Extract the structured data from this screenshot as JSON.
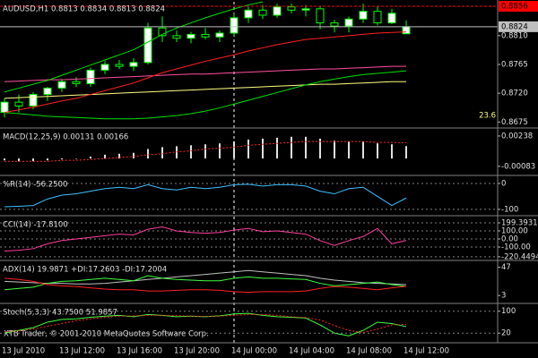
{
  "chart_data": [
    {
      "type": "candlestick",
      "title": "AUDUSD,H1  0.8813 0.8834 0.8813 0.8824",
      "categories": [
        "13 Jul 2010",
        null,
        null,
        null,
        "13 Jul 12:00",
        null,
        null,
        null,
        "13 Jul 16:00",
        null,
        null,
        null,
        "13 Jul 20:00",
        null,
        null,
        null,
        "14 Jul 00:00",
        null,
        null,
        null,
        "14 Jul 04:00",
        null,
        null,
        null,
        "14 Jul 08:00",
        null,
        null,
        null,
        "14 Jul 12:00"
      ],
      "open": [
        0.869,
        0.8706,
        0.87,
        0.8718,
        0.8728,
        0.8738,
        0.8735,
        0.8756,
        0.8765,
        0.8762,
        0.8768,
        0.8822,
        0.881,
        0.8806,
        0.8812,
        0.8808,
        0.8814,
        0.8838,
        0.885,
        0.8842,
        0.8855,
        0.885,
        0.8852,
        0.883,
        0.8825,
        0.8836,
        0.8848,
        0.883,
        0.8813
      ],
      "high": [
        0.8712,
        0.8718,
        0.8722,
        0.873,
        0.8742,
        0.8745,
        0.876,
        0.877,
        0.8772,
        0.8775,
        0.883,
        0.884,
        0.8818,
        0.8816,
        0.8822,
        0.8818,
        0.8845,
        0.8855,
        0.8858,
        0.886,
        0.886,
        0.8858,
        0.8856,
        0.8835,
        0.884,
        0.886,
        0.8856,
        0.8852,
        0.8834
      ],
      "low": [
        0.8682,
        0.869,
        0.8695,
        0.8708,
        0.8722,
        0.873,
        0.873,
        0.875,
        0.8758,
        0.8755,
        0.8765,
        0.88,
        0.88,
        0.8798,
        0.8804,
        0.88,
        0.881,
        0.883,
        0.8836,
        0.8838,
        0.8845,
        0.884,
        0.882,
        0.8815,
        0.8815,
        0.883,
        0.8826,
        0.8828,
        0.8813
      ],
      "close": [
        0.8706,
        0.87,
        0.8718,
        0.8728,
        0.8738,
        0.8735,
        0.8756,
        0.8765,
        0.8762,
        0.8768,
        0.8822,
        0.881,
        0.8806,
        0.8812,
        0.8808,
        0.8814,
        0.8838,
        0.885,
        0.8842,
        0.8855,
        0.885,
        0.8852,
        0.883,
        0.8825,
        0.8836,
        0.8848,
        0.883,
        0.8845,
        0.8824
      ],
      "up_color": "#ffffff",
      "down_color": "#000000",
      "candle_stroke": "#00ff00",
      "lines": [
        {
          "color": "#ffff80",
          "values": [
            0.8712,
            0.8713,
            0.8714,
            0.8715,
            0.8716,
            0.8717,
            0.8718,
            0.8719,
            0.872,
            0.8721,
            0.8722,
            0.8723,
            0.8724,
            0.8725,
            0.8726,
            0.8727,
            0.8728,
            0.8729,
            0.873,
            0.8731,
            0.8732,
            0.8733,
            0.8734,
            0.8734,
            0.8735,
            0.8736,
            0.8737,
            0.8738,
            0.8738
          ]
        },
        {
          "color": "#ff4fa0",
          "values": [
            0.8738,
            0.8739,
            0.874,
            0.8741,
            0.8741,
            0.8742,
            0.8743,
            0.8744,
            0.8745,
            0.8746,
            0.8747,
            0.8748,
            0.8749,
            0.875,
            0.875,
            0.8751,
            0.8752,
            0.8753,
            0.8754,
            0.8755,
            0.8756,
            0.8757,
            0.8758,
            0.8758,
            0.8759,
            0.876,
            0.8761,
            0.8762,
            0.8762
          ]
        },
        {
          "color": "#00e000",
          "values": [
            0.869,
            0.8688,
            0.8686,
            0.8684,
            0.8683,
            0.8682,
            0.8681,
            0.868,
            0.868,
            0.868,
            0.8681,
            0.8683,
            0.8685,
            0.8688,
            0.8692,
            0.8697,
            0.8703,
            0.8709,
            0.8715,
            0.8721,
            0.8727,
            0.8733,
            0.8738,
            0.8742,
            0.8746,
            0.8749,
            0.8751,
            0.8753,
            0.8755
          ]
        },
        {
          "color": "#00e000",
          "values": [
            0.8722,
            0.8728,
            0.8734,
            0.874,
            0.8748,
            0.8756,
            0.8764,
            0.8772,
            0.878,
            0.8788,
            0.88,
            0.8812,
            0.8822,
            0.883,
            0.8838,
            0.8845,
            0.8852,
            0.8858,
            0.8863,
            null,
            null,
            null,
            null,
            null,
            null,
            null,
            null,
            null,
            null
          ]
        },
        {
          "color": "#ff2020",
          "values": [
            0.869,
            0.8694,
            0.8698,
            0.8703,
            0.8708,
            0.8712,
            0.8718,
            0.8724,
            0.873,
            0.8736,
            0.8744,
            0.8752,
            0.8758,
            0.8764,
            0.877,
            0.8775,
            0.878,
            0.8786,
            0.8791,
            0.8796,
            0.88,
            0.8804,
            0.8806,
            0.8808,
            0.881,
            0.8812,
            0.8814,
            0.8815,
            0.8816
          ]
        }
      ],
      "markers": [
        {
          "value": 0.8856,
          "color": "#ff0000"
        },
        {
          "value": 0.8824,
          "color": "#c0c0c0"
        }
      ],
      "fib": {
        "label": "23.6",
        "value": 0.8677,
        "color": "#ffff80"
      },
      "ylim": [
        0.8667,
        0.8863
      ],
      "yticks": [
        {
          "value": 0.881,
          "label": "0.8810"
        },
        0.8765,
        {
          "value": 0.872,
          "label": "0.8720"
        },
        0.8675
      ],
      "grid": false
    },
    {
      "type": "macd",
      "title": "MACD(12,25,9) 0.00131 0.00166",
      "values": [
        -0.0002,
        -0.0003,
        -0.0003,
        -0.0002,
        -0.0001,
        0.0,
        0.0002,
        0.0004,
        0.0005,
        0.0006,
        0.001,
        0.0012,
        0.0013,
        0.0014,
        0.0015,
        0.0016,
        0.0018,
        0.002,
        0.0021,
        0.0022,
        0.0023,
        0.0023,
        0.0021,
        0.0019,
        0.0018,
        0.0018,
        0.0016,
        0.0015,
        0.00131
      ],
      "color": "#e0e0e0",
      "series": [
        {
          "color": "#ff2020",
          "dash": true,
          "values": [
            -0.0003,
            -0.0003,
            -0.0003,
            -0.0003,
            -0.0002,
            -0.0002,
            -0.0001,
            0,
            0.0001,
            0.0002,
            0.0004,
            0.0005,
            0.0007,
            0.0008,
            0.001,
            0.0011,
            0.0012,
            0.0014,
            0.0015,
            0.0016,
            0.0017,
            0.0018,
            0.0018,
            0.0018,
            0.0018,
            0.0018,
            0.0017,
            0.0017,
            0.00166
          ]
        }
      ],
      "ylim": [
        -0.0017,
        0.00304
      ],
      "yticks": [
        0.00238,
        -0.00083
      ],
      "grid": false
    },
    {
      "type": "line",
      "title": "%R(14) -56.2500",
      "series": [
        {
          "color": "#40c0ff",
          "values": [
            -90,
            -88,
            -85,
            -60,
            -45,
            -40,
            -30,
            -20,
            -15,
            -20,
            -5,
            -20,
            -25,
            -15,
            -20,
            -15,
            -5,
            -3,
            -10,
            -5,
            -5,
            -10,
            -30,
            -40,
            -20,
            -15,
            -50,
            -85,
            -56.25
          ]
        }
      ],
      "ylim": [
        -121,
        24
      ],
      "yticks": [
        0,
        -100
      ],
      "grid": true
    },
    {
      "type": "line",
      "title": "CCI(14) -17.8100",
      "series": [
        {
          "color": "#ff40a0",
          "values": [
            -150,
            -140,
            -120,
            -60,
            -20,
            0,
            20,
            40,
            60,
            50,
            120,
            150,
            100,
            80,
            70,
            80,
            110,
            130,
            90,
            100,
            80,
            60,
            -20,
            -80,
            -20,
            30,
            130,
            -60,
            -17.81
          ]
        }
      ],
      "ylim": [
        -255,
        266
      ],
      "yticks": [
        199.3931,
        {
          "value": 100,
          "label": "100.00"
        },
        {
          "value": 0,
          "label": "0.00"
        },
        {
          "value": -100,
          "label": "-100.00"
        },
        -220.4494
      ],
      "grid": true
    },
    {
      "type": "line",
      "title": "ADX(14) 19.9871 +DI:17.2603 -DI:17.2004",
      "series": [
        {
          "color": "#c0c0c0",
          "values": [
            25,
            24,
            23,
            22,
            22,
            21,
            21,
            22,
            24,
            26,
            28,
            30,
            32,
            34,
            36,
            38,
            40,
            42,
            40,
            38,
            36,
            34,
            30,
            27,
            25,
            23,
            22,
            21,
            19.99
          ]
        },
        {
          "color": "#40ff40",
          "values": [
            12,
            14,
            16,
            22,
            25,
            26,
            28,
            30,
            28,
            26,
            34,
            30,
            28,
            27,
            26,
            26,
            30,
            32,
            30,
            30,
            29,
            28,
            22,
            18,
            20,
            22,
            24,
            20,
            17.26
          ]
        },
        {
          "color": "#ff2020",
          "values": [
            30,
            28,
            25,
            20,
            18,
            17,
            15,
            13,
            12,
            12,
            10,
            10,
            11,
            12,
            12,
            11,
            9,
            8,
            9,
            9,
            9,
            10,
            14,
            17,
            16,
            14,
            12,
            15,
            17.2
          ]
        }
      ],
      "ylim": [
        -8,
        55
      ],
      "yticks": [
        47,
        3
      ],
      "grid": false
    },
    {
      "type": "line",
      "title": "Stoch(5,3,3) 43.7500 51.9857",
      "series": [
        {
          "color": "#40ff40",
          "values": [
            20,
            30,
            40,
            60,
            70,
            72,
            78,
            82,
            85,
            80,
            88,
            85,
            80,
            82,
            80,
            83,
            90,
            92,
            85,
            80,
            78,
            75,
            50,
            20,
            10,
            30,
            60,
            55,
            43.75
          ]
        },
        {
          "color": "#ff2020",
          "dash": true,
          "values": [
            25,
            28,
            35,
            45,
            55,
            65,
            72,
            78,
            82,
            83,
            85,
            85,
            84,
            82,
            81,
            82,
            85,
            88,
            88,
            85,
            80,
            77,
            68,
            48,
            30,
            22,
            35,
            50,
            51.9857
          ]
        }
      ],
      "ylim": [
        -12,
        122
      ],
      "yticks": [
        100,
        20
      ],
      "grid": true
    }
  ],
  "footer": "XTB Trader, © 2001-2010 MetaQuotes Software Corp."
}
